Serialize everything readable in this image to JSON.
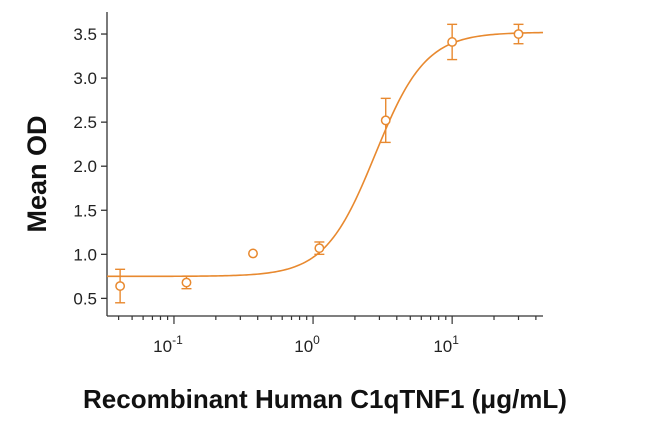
{
  "chart_data": {
    "type": "scatter",
    "title": "",
    "xlabel": "Recombinant Human C1qTNF1 (μg/mL)",
    "ylabel": "Mean OD",
    "x_scale": "log",
    "xlim": [
      0.033,
      45
    ],
    "ylim": [
      0.3,
      3.75
    ],
    "y_ticks": [
      {
        "value": 0.5,
        "label": "0.5"
      },
      {
        "value": 1.0,
        "label": "1.0"
      },
      {
        "value": 1.5,
        "label": "1.5"
      },
      {
        "value": 2.0,
        "label": "2.0"
      },
      {
        "value": 2.5,
        "label": "2.5"
      },
      {
        "value": 3.0,
        "label": "3.0"
      },
      {
        "value": 3.5,
        "label": "3.5"
      }
    ],
    "x_ticks": [
      {
        "value": 0.1,
        "base": "10",
        "exp": "-1"
      },
      {
        "value": 1,
        "base": "10",
        "exp": "0"
      },
      {
        "value": 10,
        "base": "10",
        "exp": "1"
      }
    ],
    "points": [
      {
        "x": 0.041,
        "y": 0.64,
        "err": 0.19
      },
      {
        "x": 0.123,
        "y": 0.68,
        "err": 0.07
      },
      {
        "x": 0.37,
        "y": 1.01,
        "err": 0
      },
      {
        "x": 1.11,
        "y": 1.07,
        "err": 0.07
      },
      {
        "x": 3.33,
        "y": 2.52,
        "err": 0.25
      },
      {
        "x": 10,
        "y": 3.41,
        "err": 0.2
      },
      {
        "x": 30,
        "y": 3.5,
        "err": 0.11
      }
    ],
    "fit_curve": {
      "bottom": 0.75,
      "top": 3.52,
      "ec50": 2.8,
      "hill": 2.4
    },
    "grid": false,
    "color": "#e8892f"
  }
}
